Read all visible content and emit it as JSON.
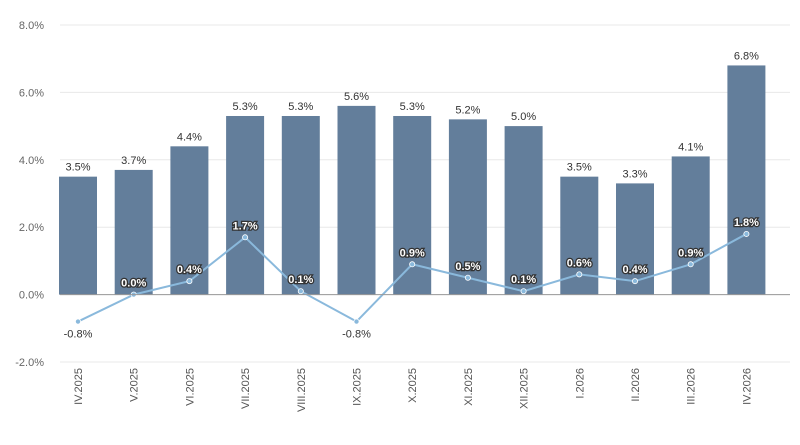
{
  "chart_data": {
    "type": "bar",
    "categories": [
      "IV.2025",
      "V.2025",
      "VI.2025",
      "VII.2025",
      "VIII.2025",
      "IX.2025",
      "X.2025",
      "XI.2025",
      "XII.2025",
      "I.2026",
      "II.2026",
      "III.2026",
      "IV.2026"
    ],
    "series": [
      {
        "type": "bar",
        "values": [
          3.5,
          3.7,
          4.4,
          5.3,
          5.3,
          5.6,
          5.3,
          5.2,
          5.0,
          3.5,
          3.3,
          4.1,
          6.8
        ],
        "labels": [
          "3.5%",
          "3.7%",
          "4.4%",
          "5.3%",
          "5.3%",
          "5.6%",
          "5.3%",
          "5.2%",
          "5.0%",
          "3.5%",
          "3.3%",
          "4.1%",
          "6.8%"
        ],
        "color": "#637e9b"
      },
      {
        "type": "line",
        "values": [
          -0.8,
          0.0,
          0.4,
          1.7,
          0.1,
          -0.8,
          0.9,
          0.5,
          0.1,
          0.6,
          0.4,
          0.9,
          1.8
        ],
        "labels": [
          "-0.8%",
          "0.0%",
          "0.4%",
          "1.7%",
          "0.1%",
          "-0.8%",
          "0.9%",
          "0.5%",
          "0.1%",
          "0.6%",
          "0.4%",
          "0.9%",
          "1.8%"
        ],
        "color": "#8ab9dc"
      }
    ],
    "yticks": [
      "8.0%",
      "6.0%",
      "4.0%",
      "2.0%",
      "0.0%",
      "-2.0%"
    ],
    "ylim": [
      -2,
      8
    ],
    "grid": true,
    "axis_color": "#999999",
    "grid_color": "#e8e8e8"
  }
}
